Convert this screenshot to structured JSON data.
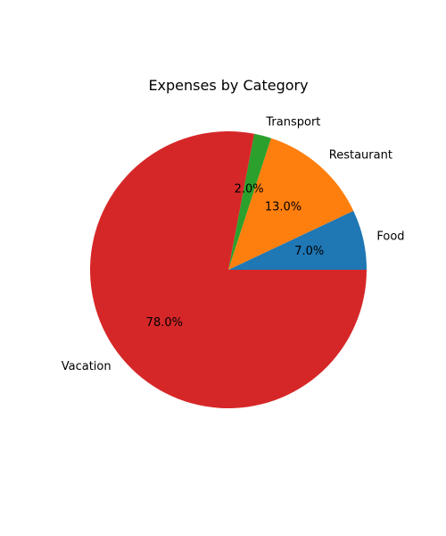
{
  "chart_data": {
    "type": "pie",
    "title": "Expenses by Category",
    "categories": [
      "Food",
      "Restaurant",
      "Transport",
      "Vacation"
    ],
    "values": [
      7.0,
      13.0,
      2.0,
      78.0
    ],
    "percent_labels": [
      "7.0%",
      "13.0%",
      "2.0%",
      "78.0%"
    ],
    "colors": [
      "#1f77b4",
      "#ff7f0e",
      "#2ca02c",
      "#d62728"
    ],
    "start_angle_deg": 0,
    "direction": "counterclockwise",
    "legend": "none",
    "grid": false
  }
}
